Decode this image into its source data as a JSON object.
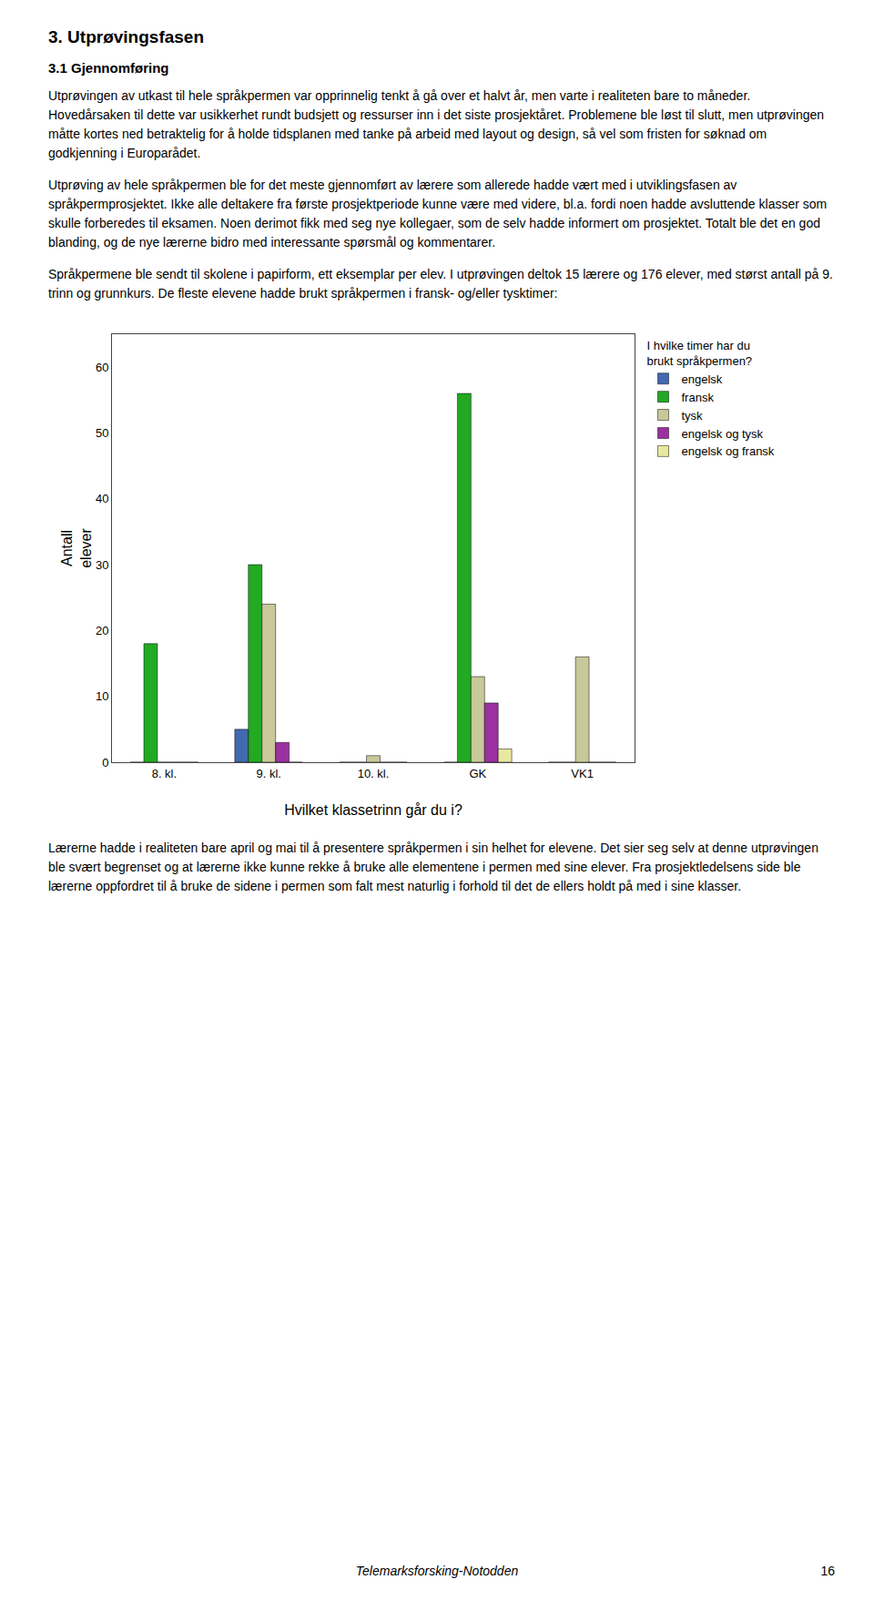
{
  "page_title": "3. Utprøvingsfasen",
  "section_title": "3.1   Gjennomføring",
  "text_before_chart": [
    "Utprøvingen av utkast til hele språkpermen var opprinnelig tenkt å gå over et halvt år, men varte i realiteten bare to måneder. Hovedårsaken til dette var usikkerhet rundt budsjett og ressurser inn i det siste prosjektåret. Problemene ble løst til slutt, men utprøvingen måtte kortes ned betraktelig for å holde tidsplanen med tanke på arbeid med layout og design, så vel som fristen for søknad om godkjenning i Europarådet.",
    "Utprøving av hele språkpermen ble for det meste gjennomført av lærere som allerede hadde vært med i utviklingsfasen av språkpermprosjektet. Ikke alle deltakere fra første prosjektperiode kunne være med videre, bl.a. fordi noen hadde avsluttende klasser som skulle forberedes til eksamen. Noen derimot fikk med seg nye kollegaer, som de selv hadde informert om prosjektet. Totalt ble det en god blanding, og de nye lærerne bidro med interessante spørsmål og kommentarer.",
    "Språkpermene ble sendt til skolene i papirform, ett eksemplar per elev. I utprøvingen deltok 15 lærere og 176 elever, med størst antall på 9. trinn og grunnkurs. De fleste elevene hadde brukt språkpermen i fransk- og/eller tysktimer:"
  ],
  "text_after_chart": [
    "Lærerne hadde i realiteten bare april og mai til å presentere språkpermen i sin helhet for elevene. Det sier seg selv at denne utprøvingen ble svært begrenset og at lærerne ikke kunne rekke å bruke alle elementene i permen med sine elever. Fra prosjektledelsens side ble lærerne oppfordret til å bruke de sidene i permen som falt mest naturlig i forhold til det de ellers holdt på med i sine klasser."
  ],
  "footer": "Telemarksforsking-Notodden",
  "page_number": "16",
  "chart_data": {
    "type": "bar",
    "xlabel": "Hvilket klassetrinn går du i?",
    "ylabel": "Antall\nelever",
    "legend_title": "I hvilke timer har du\nbrukt språkpermen?",
    "categories": [
      "8. kl.",
      "9. kl.",
      "10. kl.",
      "GK",
      "VK1"
    ],
    "series": [
      {
        "name": "engelsk",
        "color": "#4169b0",
        "values": [
          0,
          5,
          0,
          0,
          0
        ]
      },
      {
        "name": "fransk",
        "color": "#22aa22",
        "values": [
          18,
          30,
          0,
          56,
          0
        ]
      },
      {
        "name": "tysk",
        "color": "#c8c89a",
        "values": [
          0,
          24,
          1,
          13,
          16
        ]
      },
      {
        "name": "engelsk og tysk",
        "color": "#9b30a0",
        "values": [
          0,
          3,
          0,
          9,
          0
        ]
      },
      {
        "name": "engelsk og fransk",
        "color": "#e8e8a0",
        "values": [
          0,
          0,
          0,
          2,
          0
        ]
      }
    ],
    "ylim": [
      0,
      65
    ],
    "yticks": [
      0,
      10,
      20,
      30,
      40,
      50,
      60
    ],
    "grid": false,
    "legend": "right"
  }
}
